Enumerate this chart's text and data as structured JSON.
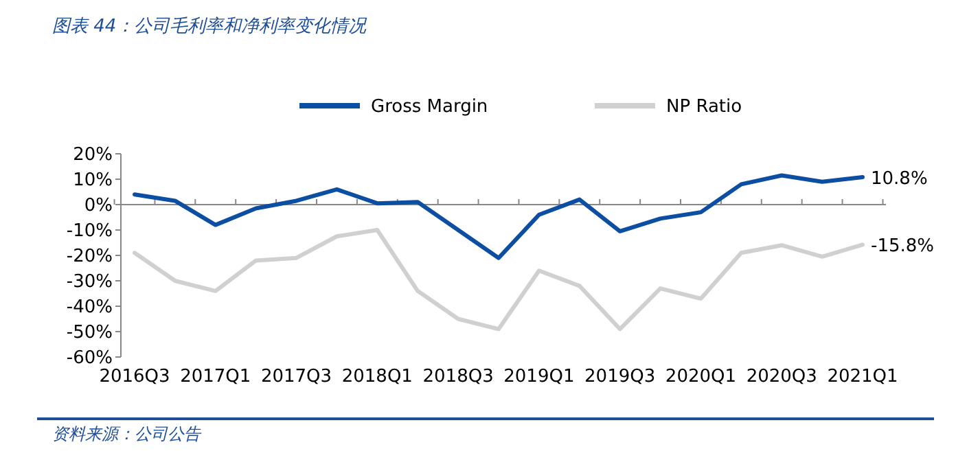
{
  "chart_data": {
    "type": "line",
    "title": "图表 44：公司毛利率和净利率变化情况",
    "annotations": [
      "资料来源：公司公告"
    ],
    "categories": [
      "2016Q3",
      null,
      "2017Q1",
      null,
      "2017Q3",
      null,
      "2018Q1",
      null,
      "2018Q3",
      null,
      "2019Q1",
      null,
      "2019Q3",
      null,
      "2020Q1",
      null,
      "2020Q3",
      null,
      "2021Q1"
    ],
    "series": [
      {
        "name": "Gross Margin",
        "color": "#0b4ea2",
        "values": [
          4,
          1.5,
          -8,
          -1.5,
          1.5,
          6,
          0.5,
          1,
          -10,
          -21,
          -4,
          2,
          -10.5,
          -5.5,
          -3,
          8,
          11.5,
          9,
          10.8
        ],
        "value_labels": [
          null,
          null,
          null,
          null,
          null,
          null,
          null,
          null,
          null,
          null,
          null,
          null,
          null,
          null,
          null,
          null,
          null,
          null,
          "10.8%"
        ]
      },
      {
        "name": "NP Ratio",
        "color": "#d0d0d0",
        "values": [
          -19,
          -30,
          -34,
          -22,
          -21,
          -12.5,
          -10,
          -34,
          -45,
          -49,
          -26,
          -32,
          -49,
          -33,
          -37,
          -19,
          -16,
          -20.5,
          -15.8
        ],
        "value_labels": [
          null,
          null,
          null,
          null,
          null,
          null,
          null,
          null,
          null,
          null,
          null,
          null,
          null,
          null,
          null,
          null,
          null,
          null,
          "-15.8%"
        ]
      }
    ],
    "ylim": [
      -60,
      20
    ],
    "yticks": [
      {
        "value": -60,
        "label": "-60%"
      },
      {
        "value": -50,
        "label": "-50%"
      },
      {
        "value": -40,
        "label": "-40%"
      },
      {
        "value": -30,
        "label": "-30%"
      },
      {
        "value": -20,
        "label": "-20%"
      },
      {
        "value": -10,
        "label": "-10%"
      },
      {
        "value": 0,
        "label": "0%"
      },
      {
        "value": 10,
        "label": "10%"
      },
      {
        "value": 20,
        "label": "20%"
      }
    ],
    "legend": "top",
    "marker": "none",
    "line_style": "solid"
  }
}
